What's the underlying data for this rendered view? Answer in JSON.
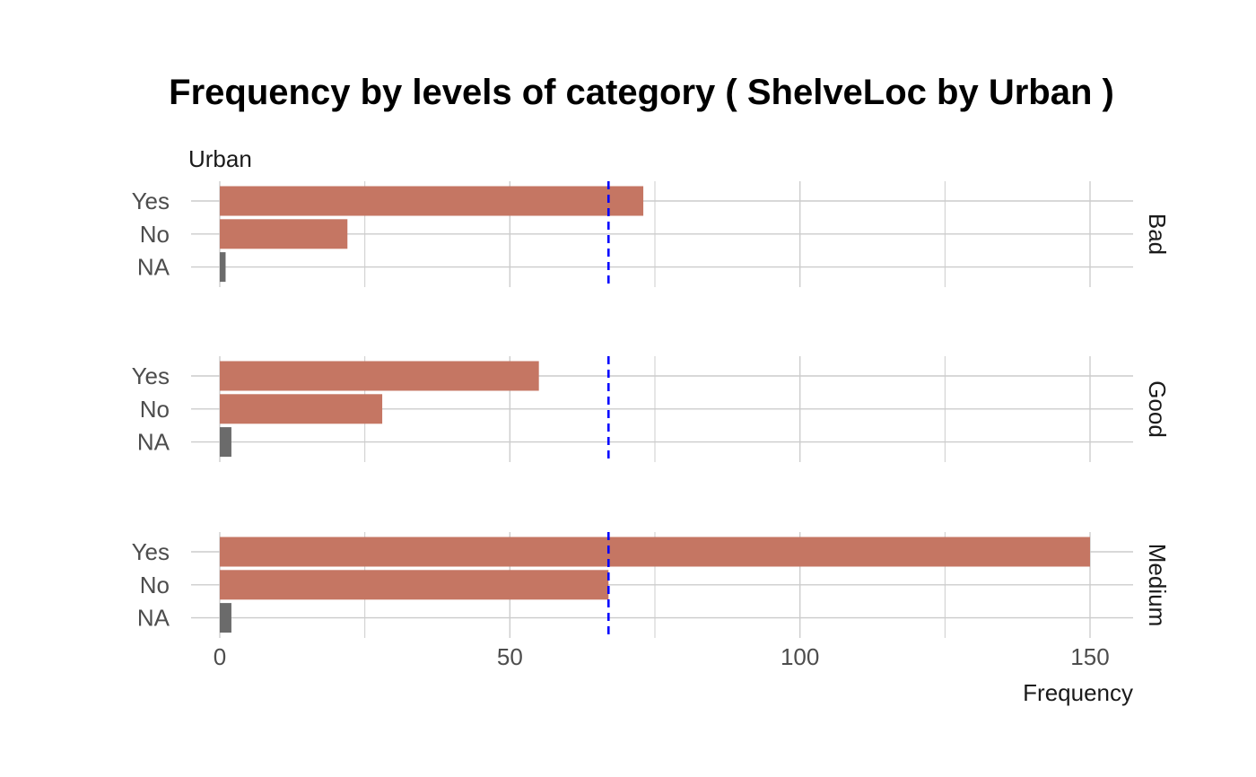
{
  "chart_data": {
    "type": "bar",
    "orientation": "horizontal",
    "title": "Frequency by levels of category ( ShelveLoc by Urban )",
    "ylabel": "Urban",
    "xlabel": "Frequency",
    "x_ticks": [
      0,
      50,
      100,
      150
    ],
    "xlim": [
      0,
      157
    ],
    "categories": [
      "Yes",
      "No",
      "NA"
    ],
    "facets": [
      {
        "name": "Bad",
        "values": [
          73,
          22,
          1
        ]
      },
      {
        "name": "Good",
        "values": [
          55,
          28,
          2
        ]
      },
      {
        "name": "Medium",
        "values": [
          150,
          67,
          2
        ]
      }
    ],
    "reference_line": {
      "value": 67,
      "style": "dashed",
      "color": "#0000ff"
    },
    "colors": {
      "bar": "#c57663",
      "na_bar": "#6b6b6b",
      "grid": "#cccccc"
    },
    "grid": true,
    "legend": "none"
  }
}
